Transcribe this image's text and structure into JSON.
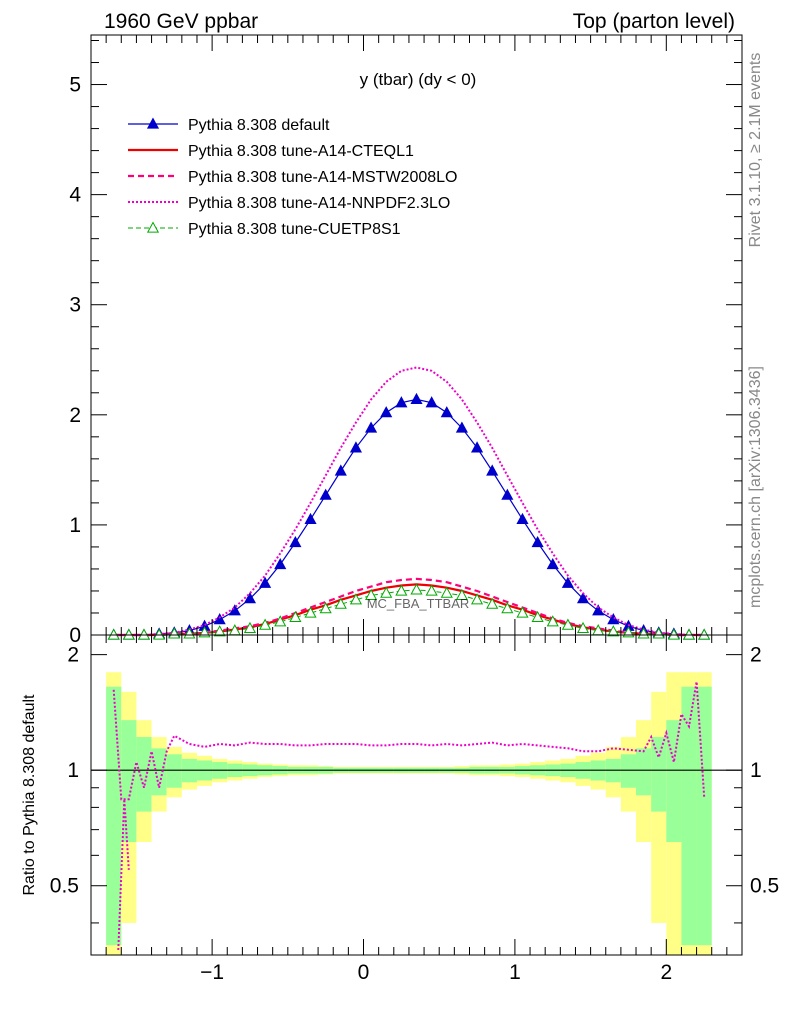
{
  "header": {
    "left": "1960 GeV ppbar",
    "right": "Top (parton level)"
  },
  "side_texts": {
    "rivet": "Rivet 3.1.10, ≥ 2.1M events",
    "mcplots": "mcplots.cern.ch [arXiv:1306.3436]"
  },
  "chart_data": [
    {
      "type": "line",
      "title": "y (tbar) (dy < 0)",
      "watermark": "MC_FBA_TTBAR",
      "xlim": [
        -1.8,
        2.5
      ],
      "ylim": [
        0,
        5.45
      ],
      "yticks": [
        0,
        1,
        2,
        3,
        4,
        5
      ],
      "xticks": [
        -1,
        0,
        1,
        2
      ],
      "legend_position": "top-left",
      "series": [
        {
          "name": "Pythia 8.308 default",
          "color": "#0000cc",
          "marker": "triangle-filled",
          "x": [
            -1.65,
            -1.55,
            -1.45,
            -1.35,
            -1.25,
            -1.15,
            -1.05,
            -0.95,
            -0.85,
            -0.75,
            -0.65,
            -0.55,
            -0.45,
            -0.35,
            -0.25,
            -0.15,
            -0.05,
            0.05,
            0.15,
            0.25,
            0.35,
            0.45,
            0.55,
            0.65,
            0.75,
            0.85,
            0.95,
            1.05,
            1.15,
            1.25,
            1.35,
            1.45,
            1.55,
            1.65,
            1.75,
            1.85,
            1.95,
            2.05,
            2.15,
            2.25
          ],
          "y": [
            0.0,
            0.0,
            0.0,
            0.01,
            0.02,
            0.04,
            0.08,
            0.14,
            0.22,
            0.33,
            0.47,
            0.64,
            0.84,
            1.05,
            1.27,
            1.49,
            1.7,
            1.88,
            2.02,
            2.11,
            2.14,
            2.11,
            2.02,
            1.88,
            1.7,
            1.49,
            1.27,
            1.05,
            0.84,
            0.64,
            0.47,
            0.33,
            0.22,
            0.14,
            0.08,
            0.04,
            0.02,
            0.01,
            0.0,
            0.0
          ]
        },
        {
          "name": "Pythia 8.308 tune-A14-CTEQL1",
          "color": "#ee0000",
          "marker": "none",
          "x": [
            -1.65,
            -1.55,
            -1.45,
            -1.35,
            -1.25,
            -1.15,
            -1.05,
            -0.95,
            -0.85,
            -0.75,
            -0.65,
            -0.55,
            -0.45,
            -0.35,
            -0.25,
            -0.15,
            -0.05,
            0.05,
            0.15,
            0.25,
            0.35,
            0.45,
            0.55,
            0.65,
            0.75,
            0.85,
            0.95,
            1.05,
            1.15,
            1.25,
            1.35,
            1.45,
            1.55,
            1.65,
            1.75,
            1.85,
            1.95,
            2.05,
            2.15,
            2.25
          ],
          "y": [
            0.0,
            0.0,
            0.0,
            0.0,
            0.01,
            0.01,
            0.02,
            0.03,
            0.05,
            0.07,
            0.1,
            0.14,
            0.18,
            0.23,
            0.27,
            0.32,
            0.36,
            0.4,
            0.43,
            0.45,
            0.46,
            0.45,
            0.43,
            0.4,
            0.36,
            0.32,
            0.27,
            0.23,
            0.18,
            0.14,
            0.1,
            0.07,
            0.05,
            0.03,
            0.02,
            0.01,
            0.01,
            0.0,
            0.0,
            0.0
          ]
        },
        {
          "name": "Pythia 8.308 tune-A14-MSTW2008LO",
          "color": "#ff0077",
          "marker": "none",
          "x": [
            -1.65,
            -1.55,
            -1.45,
            -1.35,
            -1.25,
            -1.15,
            -1.05,
            -0.95,
            -0.85,
            -0.75,
            -0.65,
            -0.55,
            -0.45,
            -0.35,
            -0.25,
            -0.15,
            -0.05,
            0.05,
            0.15,
            0.25,
            0.35,
            0.45,
            0.55,
            0.65,
            0.75,
            0.85,
            0.95,
            1.05,
            1.15,
            1.25,
            1.35,
            1.45,
            1.55,
            1.65,
            1.75,
            1.85,
            1.95,
            2.05,
            2.15,
            2.25
          ],
          "y": [
            0.0,
            0.0,
            0.0,
            0.0,
            0.01,
            0.01,
            0.02,
            0.04,
            0.06,
            0.08,
            0.11,
            0.15,
            0.2,
            0.25,
            0.3,
            0.35,
            0.4,
            0.44,
            0.48,
            0.5,
            0.51,
            0.5,
            0.48,
            0.44,
            0.4,
            0.35,
            0.3,
            0.25,
            0.2,
            0.15,
            0.11,
            0.08,
            0.06,
            0.04,
            0.02,
            0.01,
            0.01,
            0.0,
            0.0,
            0.0
          ]
        },
        {
          "name": "Pythia 8.308 tune-A14-NNPDF2.3LO",
          "color": "#ee00cc",
          "marker": "none",
          "x": [
            -1.65,
            -1.55,
            -1.45,
            -1.35,
            -1.25,
            -1.15,
            -1.05,
            -0.95,
            -0.85,
            -0.75,
            -0.65,
            -0.55,
            -0.45,
            -0.35,
            -0.25,
            -0.15,
            -0.05,
            0.05,
            0.15,
            0.25,
            0.35,
            0.45,
            0.55,
            0.65,
            0.75,
            0.85,
            0.95,
            1.05,
            1.15,
            1.25,
            1.35,
            1.45,
            1.55,
            1.65,
            1.75,
            1.85,
            1.95,
            2.05,
            2.15,
            2.25
          ],
          "y": [
            0.0,
            0.0,
            0.0,
            0.01,
            0.02,
            0.05,
            0.09,
            0.16,
            0.25,
            0.38,
            0.54,
            0.74,
            0.96,
            1.2,
            1.45,
            1.7,
            1.93,
            2.14,
            2.3,
            2.4,
            2.43,
            2.4,
            2.3,
            2.14,
            1.93,
            1.7,
            1.45,
            1.2,
            0.96,
            0.74,
            0.54,
            0.38,
            0.25,
            0.16,
            0.09,
            0.05,
            0.02,
            0.01,
            0.0,
            0.0
          ]
        },
        {
          "name": "Pythia 8.308 tune-CUETP8S1",
          "color": "#00aa00",
          "marker": "triangle-open",
          "x": [
            -1.65,
            -1.55,
            -1.45,
            -1.35,
            -1.25,
            -1.15,
            -1.05,
            -0.95,
            -0.85,
            -0.75,
            -0.65,
            -0.55,
            -0.45,
            -0.35,
            -0.25,
            -0.15,
            -0.05,
            0.05,
            0.15,
            0.25,
            0.35,
            0.45,
            0.55,
            0.65,
            0.75,
            0.85,
            0.95,
            1.05,
            1.15,
            1.25,
            1.35,
            1.45,
            1.55,
            1.65,
            1.75,
            1.85,
            1.95,
            2.05,
            2.15,
            2.25
          ],
          "y": [
            0.0,
            0.0,
            0.0,
            0.0,
            0.01,
            0.01,
            0.02,
            0.03,
            0.04,
            0.06,
            0.09,
            0.12,
            0.16,
            0.2,
            0.24,
            0.28,
            0.32,
            0.36,
            0.38,
            0.4,
            0.41,
            0.4,
            0.38,
            0.36,
            0.32,
            0.28,
            0.24,
            0.2,
            0.16,
            0.12,
            0.09,
            0.06,
            0.04,
            0.03,
            0.02,
            0.01,
            0.01,
            0.0,
            0.0,
            0.0
          ]
        }
      ]
    },
    {
      "type": "line",
      "ylabel": "Ratio to Pythia 8.308 default",
      "xlim": [
        -1.8,
        2.5
      ],
      "ylim": [
        0.33,
        2.25
      ],
      "yticks": [
        0.5,
        1,
        2
      ],
      "ytick_labels": [
        "0.5",
        "1",
        "2"
      ],
      "xticks": [
        -1,
        0,
        1,
        2
      ],
      "xtick_labels": [
        "−1",
        "0",
        "1",
        "2"
      ],
      "yscale": "log",
      "reference_line": 1,
      "bands": {
        "bin_edges": [
          -1.7,
          -1.6,
          -1.5,
          -1.4,
          -1.3,
          -1.2,
          -1.1,
          -1.0,
          -0.9,
          -0.8,
          -0.7,
          -0.6,
          -0.5,
          -0.4,
          -0.3,
          -0.2,
          -0.1,
          0.0,
          0.1,
          0.2,
          0.3,
          0.4,
          0.5,
          0.6,
          0.7,
          0.8,
          0.9,
          1.0,
          1.1,
          1.2,
          1.3,
          1.4,
          1.5,
          1.6,
          1.7,
          1.8,
          1.9,
          2.0,
          2.1,
          2.2,
          2.3
        ],
        "green_half": [
          0.65,
          0.35,
          0.22,
          0.14,
          0.1,
          0.07,
          0.06,
          0.05,
          0.04,
          0.035,
          0.03,
          0.025,
          0.02,
          0.02,
          0.02,
          0.015,
          0.015,
          0.015,
          0.015,
          0.015,
          0.015,
          0.015,
          0.015,
          0.015,
          0.02,
          0.02,
          0.02,
          0.025,
          0.03,
          0.035,
          0.04,
          0.05,
          0.06,
          0.07,
          0.1,
          0.14,
          0.22,
          0.35,
          0.65,
          0.65
        ],
        "yellow_half": [
          0.8,
          0.6,
          0.35,
          0.22,
          0.15,
          0.11,
          0.09,
          0.07,
          0.06,
          0.05,
          0.04,
          0.035,
          0.03,
          0.03,
          0.025,
          0.02,
          0.02,
          0.02,
          0.02,
          0.02,
          0.02,
          0.02,
          0.02,
          0.025,
          0.03,
          0.03,
          0.035,
          0.04,
          0.05,
          0.06,
          0.07,
          0.09,
          0.11,
          0.15,
          0.22,
          0.35,
          0.6,
          0.8,
          0.8,
          0.8
        ],
        "green_color": "#99ff99",
        "yellow_color": "#ffff88"
      },
      "series": [
        {
          "name": "Pythia 8.308 tune-A14-NNPDF2.3LO",
          "color": "#ee00cc",
          "x": [
            -1.65,
            -1.6,
            -1.55,
            -1.5,
            -1.45,
            -1.4,
            -1.35,
            -1.3,
            -1.25,
            -1.15,
            -1.05,
            -0.95,
            -0.85,
            -0.75,
            -0.65,
            -0.55,
            -0.45,
            -0.35,
            -0.25,
            -0.15,
            -0.05,
            0.05,
            0.15,
            0.25,
            0.35,
            0.45,
            0.55,
            0.65,
            0.75,
            0.85,
            0.95,
            1.05,
            1.15,
            1.25,
            1.35,
            1.45,
            1.55,
            1.65,
            1.75,
            1.85,
            1.9,
            1.95,
            2.0,
            2.05,
            2.1,
            2.15,
            2.2,
            2.25
          ],
          "y": [
            1.62,
            0.84,
            0.84,
            1.05,
            0.9,
            1.12,
            0.9,
            1.12,
            1.23,
            1.17,
            1.15,
            1.17,
            1.16,
            1.18,
            1.17,
            1.17,
            1.16,
            1.16,
            1.17,
            1.17,
            1.17,
            1.16,
            1.16,
            1.17,
            1.17,
            1.16,
            1.17,
            1.16,
            1.17,
            1.18,
            1.16,
            1.17,
            1.16,
            1.15,
            1.14,
            1.12,
            1.12,
            1.14,
            1.13,
            1.12,
            1.22,
            1.08,
            1.25,
            1.05,
            1.4,
            1.3,
            1.7,
            0.85
          ]
        },
        {
          "name": "Pythia 8.308 tune-A14-NNPDF2.3LO (low)",
          "color": "#ee00cc",
          "x": [
            -1.62,
            -1.58,
            -1.55
          ],
          "y": [
            0.34,
            0.84,
            0.55
          ]
        }
      ]
    }
  ]
}
